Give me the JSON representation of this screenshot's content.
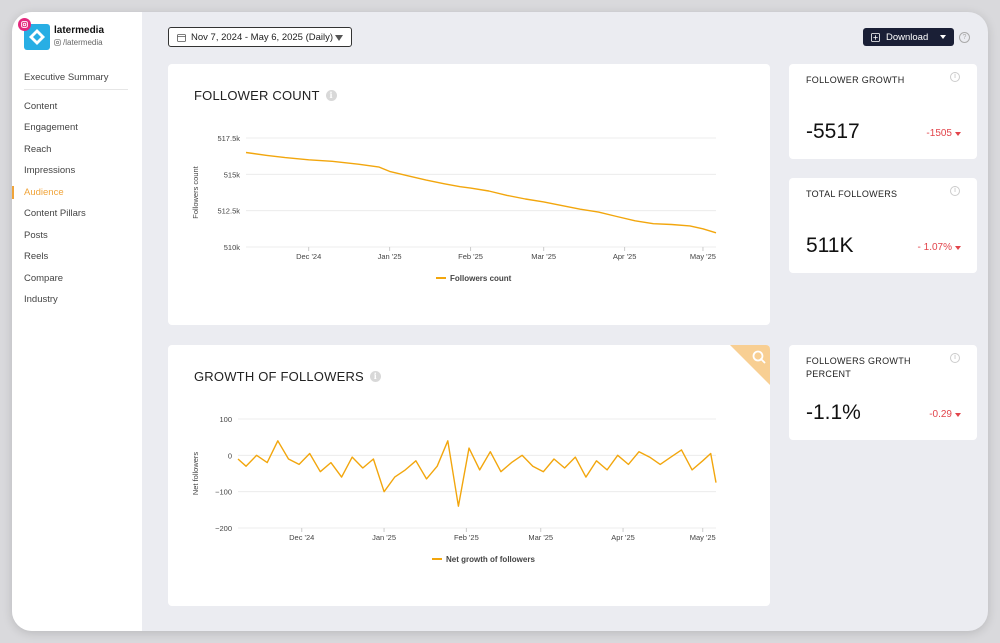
{
  "brand": {
    "name": "latermedia",
    "handle": "/latermedia",
    "accent": "#28aee4",
    "instagram_color": "#e3287d"
  },
  "nav": {
    "items": [
      {
        "label": "Executive Summary",
        "active": false
      },
      {
        "label": "Content",
        "active": false
      },
      {
        "label": "Engagement",
        "active": false
      },
      {
        "label": "Reach",
        "active": false
      },
      {
        "label": "Impressions",
        "active": false
      },
      {
        "label": "Audience",
        "active": true
      },
      {
        "label": "Content Pillars",
        "active": false
      },
      {
        "label": "Posts",
        "active": false
      },
      {
        "label": "Reels",
        "active": false
      },
      {
        "label": "Compare",
        "active": false
      },
      {
        "label": "Industry",
        "active": false
      }
    ],
    "active_color": "#f0a43a"
  },
  "toolbar": {
    "date_range": "Nov 7, 2024 - May 6, 2025 (Daily)",
    "download_label": "Download",
    "help_icon": "question-icon"
  },
  "follower_count": {
    "title": "FOLLOWER COUNT",
    "chart_data": {
      "type": "line",
      "ylabel": "Followers count",
      "xlabel": "",
      "ylim": [
        510000,
        517500
      ],
      "yticks": [
        "510k",
        "512.5k",
        "515k",
        "517.5k"
      ],
      "xticks": [
        "Dec '24",
        "Jan '25",
        "Feb '25",
        "Mar '25",
        "Apr '25",
        "May '25"
      ],
      "series": [
        {
          "name": "Followers count",
          "color": "#f2a60d",
          "x": [
            "2024-11-07",
            "2024-11-15",
            "2024-11-22",
            "2024-12-01",
            "2024-12-10",
            "2024-12-20",
            "2024-12-28",
            "2025-01-01",
            "2025-01-08",
            "2025-01-15",
            "2025-01-22",
            "2025-01-28",
            "2025-02-01",
            "2025-02-08",
            "2025-02-15",
            "2025-02-22",
            "2025-03-01",
            "2025-03-08",
            "2025-03-15",
            "2025-03-22",
            "2025-03-29",
            "2025-04-05",
            "2025-04-12",
            "2025-04-19",
            "2025-04-26",
            "2025-05-01",
            "2025-05-06"
          ],
          "values": [
            516500,
            516300,
            516150,
            516000,
            515900,
            515700,
            515500,
            515200,
            514900,
            514600,
            514350,
            514150,
            514050,
            513850,
            513550,
            513300,
            513100,
            512850,
            512600,
            512400,
            512100,
            511800,
            511600,
            511550,
            511450,
            511250,
            510980
          ]
        }
      ]
    }
  },
  "growth_of_followers": {
    "title": "GROWTH OF FOLLOWERS",
    "chart_data": {
      "type": "line",
      "ylabel": "Net followers",
      "xlabel": "",
      "ylim": [
        -200,
        100
      ],
      "yticks": [
        "100",
        "0",
        "−100",
        "−200"
      ],
      "xticks": [
        "Dec '24",
        "Jan '25",
        "Feb '25",
        "Mar '25",
        "Apr '25",
        "May '25"
      ],
      "series": [
        {
          "name": "Net growth of followers",
          "color": "#f2a60d",
          "x": [
            "2024-11-07",
            "2024-11-10",
            "2024-11-14",
            "2024-11-18",
            "2024-11-22",
            "2024-11-26",
            "2024-11-30",
            "2024-12-04",
            "2024-12-08",
            "2024-12-12",
            "2024-12-16",
            "2024-12-20",
            "2024-12-24",
            "2024-12-28",
            "2025-01-01",
            "2025-01-05",
            "2025-01-09",
            "2025-01-13",
            "2025-01-17",
            "2025-01-21",
            "2025-01-25",
            "2025-01-29",
            "2025-02-02",
            "2025-02-06",
            "2025-02-10",
            "2025-02-14",
            "2025-02-18",
            "2025-02-22",
            "2025-02-26",
            "2025-03-02",
            "2025-03-06",
            "2025-03-10",
            "2025-03-14",
            "2025-03-18",
            "2025-03-22",
            "2025-03-26",
            "2025-03-30",
            "2025-04-03",
            "2025-04-07",
            "2025-04-11",
            "2025-04-15",
            "2025-04-19",
            "2025-04-23",
            "2025-04-27",
            "2025-05-01",
            "2025-05-04",
            "2025-05-06"
          ],
          "values": [
            -10,
            -30,
            0,
            -20,
            40,
            -10,
            -25,
            5,
            -45,
            -20,
            -60,
            -5,
            -35,
            -10,
            -100,
            -60,
            -40,
            -15,
            -65,
            -30,
            40,
            -140,
            20,
            -40,
            10,
            -45,
            -20,
            0,
            -30,
            -45,
            -10,
            -35,
            -5,
            -60,
            -15,
            -40,
            0,
            -25,
            10,
            -5,
            -25,
            -5,
            15,
            -40,
            -15,
            5,
            -75
          ]
        }
      ]
    }
  },
  "stats": {
    "follower_growth": {
      "title": "FOLLOWER GROWTH",
      "value": "-5517",
      "change": "-1505"
    },
    "total_followers": {
      "title": "TOTAL FOLLOWERS",
      "value": "511K",
      "change": "- 1.07%"
    },
    "followers_growth_percent": {
      "title": "FOLLOWERS GROWTH PERCENT",
      "value": "-1.1%",
      "change": "-0.29"
    },
    "negative_color": "#e2444b"
  }
}
